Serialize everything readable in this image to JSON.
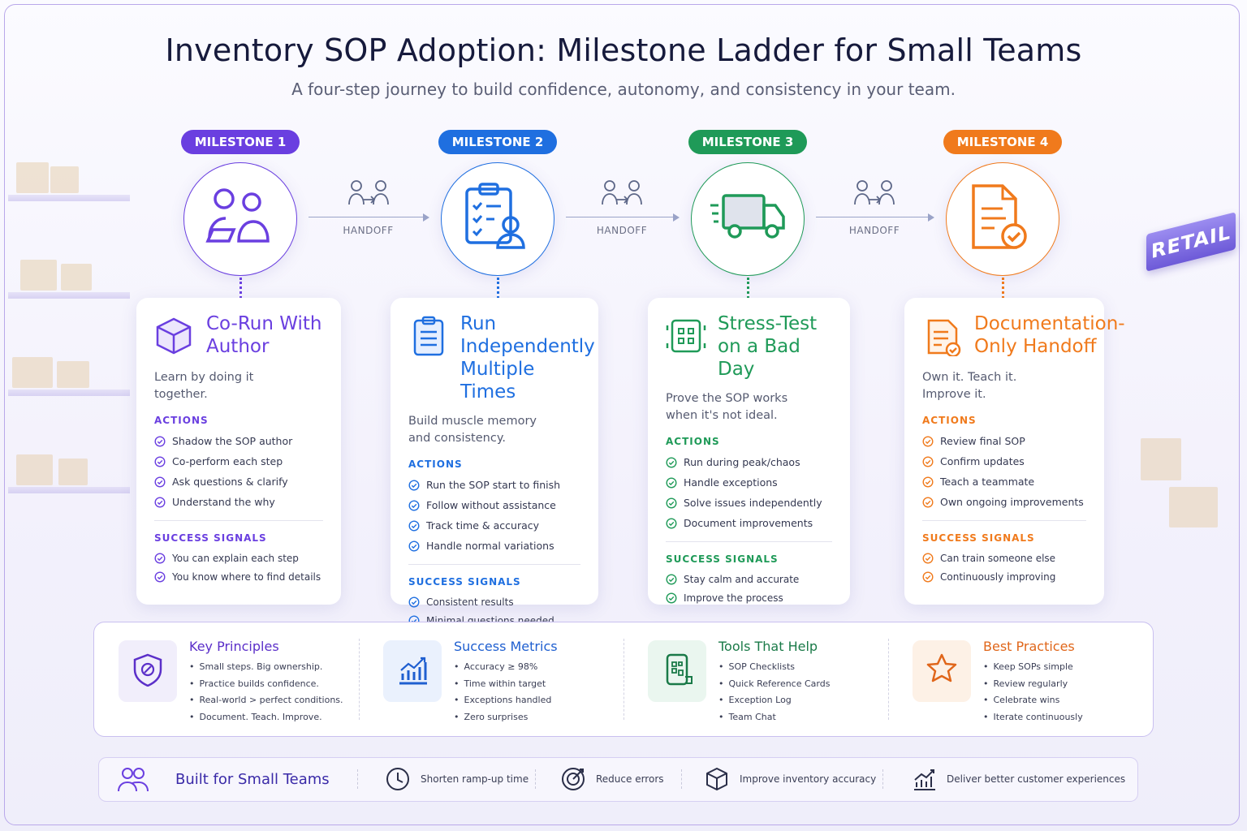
{
  "header": {
    "title": "Inventory SOP Adoption: Milestone Ladder for Small Teams",
    "subtitle": "A four-step journey to build confidence, autonomy, and consistency in your team."
  },
  "handoffs": [
    "HANDOFF",
    "HANDOFF",
    "HANDOFF"
  ],
  "milestones": [
    {
      "badge": "MILESTONE 1",
      "color": "#6a3fe0",
      "title": "Co-Run With Author",
      "tagline": "Learn by doing it together.",
      "actions_heading": "ACTIONS",
      "actions": [
        "Shadow the SOP author",
        "Co-perform each step",
        "Ask questions & clarify",
        "Understand the why"
      ],
      "signals_heading": "SUCCESS SIGNALS",
      "signals": [
        "You can explain each step",
        "You know where to find details"
      ]
    },
    {
      "badge": "MILESTONE 2",
      "color": "#1f6fe0",
      "title": "Run Independently Multiple Times",
      "tagline": "Build muscle memory and consistency.",
      "actions_heading": "ACTIONS",
      "actions": [
        "Run the SOP start to finish",
        "Follow without assistance",
        "Track time & accuracy",
        "Handle normal variations"
      ],
      "signals_heading": "SUCCESS SIGNALS",
      "signals": [
        "Consistent results",
        "Minimal questions needed"
      ]
    },
    {
      "badge": "MILESTONE 3",
      "color": "#1f9a58",
      "title": "Stress-Test on a Bad Day",
      "tagline": "Prove the SOP works when it's not ideal.",
      "actions_heading": "ACTIONS",
      "actions": [
        "Run during peak/chaos",
        "Handle exceptions",
        "Solve issues independently",
        "Document improvements"
      ],
      "signals_heading": "SUCCESS SIGNALS",
      "signals": [
        "Stay calm and accurate",
        "Improve the process"
      ]
    },
    {
      "badge": "MILESTONE 4",
      "color": "#f07a1c",
      "title": "Documentation-Only Handoff",
      "tagline": "Own it. Teach it. Improve it.",
      "actions_heading": "ACTIONS",
      "actions": [
        "Review final SOP",
        "Confirm updates",
        "Teach a teammate",
        "Own ongoing improvements"
      ],
      "signals_heading": "SUCCESS SIGNALS",
      "signals": [
        "Can train someone else",
        "Continuously improving"
      ]
    }
  ],
  "info_panel": [
    {
      "title": "Key Principles",
      "color": "#5b2fc9",
      "items": [
        "Small steps. Big ownership.",
        "Practice builds confidence.",
        "Real-world > perfect conditions.",
        "Document. Teach. Improve."
      ]
    },
    {
      "title": "Success Metrics",
      "color": "#1f5fd0",
      "items": [
        "Accuracy ≥ 98%",
        "Time within target",
        "Exceptions handled",
        "Zero surprises"
      ]
    },
    {
      "title": "Tools That Help",
      "color": "#1a7a48",
      "items": [
        "SOP Checklists",
        "Quick Reference Cards",
        "Exception Log",
        "Team Chat"
      ]
    },
    {
      "title": "Best Practices",
      "color": "#e0661a",
      "items": [
        "Keep SOPs simple",
        "Review regularly",
        "Celebrate wins",
        "Iterate continuously"
      ]
    }
  ],
  "footer": {
    "title": "Built for Small Teams",
    "items": [
      "Shorten ramp-up time",
      "Reduce errors",
      "Improve inventory accuracy",
      "Deliver better customer experiences"
    ]
  },
  "decor": {
    "retail_sign": "RETAIL"
  }
}
